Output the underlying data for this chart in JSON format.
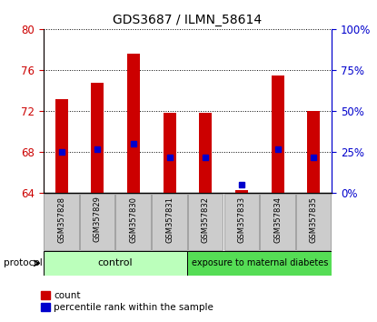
{
  "title": "GDS3687 / ILMN_58614",
  "samples": [
    "GSM357828",
    "GSM357829",
    "GSM357830",
    "GSM357831",
    "GSM357832",
    "GSM357833",
    "GSM357834",
    "GSM357835"
  ],
  "count_values": [
    73.2,
    74.8,
    77.6,
    71.8,
    71.8,
    64.3,
    75.5,
    72.0
  ],
  "percentile_values": [
    68.0,
    68.3,
    68.8,
    67.5,
    67.5,
    64.8,
    68.3,
    67.5
  ],
  "ylim": [
    64,
    80
  ],
  "yticks_left": [
    64,
    68,
    72,
    76,
    80
  ],
  "yticks_right": [
    0,
    25,
    50,
    75,
    100
  ],
  "left_color": "#cc0000",
  "right_color": "#0000cc",
  "bar_color": "#cc0000",
  "dot_color": "#0000cc",
  "control_color": "#bbffbb",
  "exposure_color": "#55dd55",
  "control_label": "control",
  "exposure_label": "exposure to maternal diabetes",
  "control_samples": 4,
  "exposure_samples": 4,
  "protocol_label": "protocol",
  "legend_count": "count",
  "legend_pct": "percentile rank within the sample",
  "bar_width": 0.35
}
